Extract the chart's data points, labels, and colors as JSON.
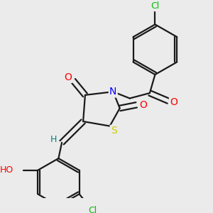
{
  "bg_color": "#ebebeb",
  "atom_colors": {
    "C": "#1a1a1a",
    "N": "#0000ff",
    "O": "#ff0000",
    "S": "#cccc00",
    "Cl": "#00bb00",
    "H": "#008080"
  },
  "bond_color": "#1a1a1a",
  "bond_width": 1.6,
  "figsize": [
    3.0,
    3.0
  ],
  "dpi": 100
}
